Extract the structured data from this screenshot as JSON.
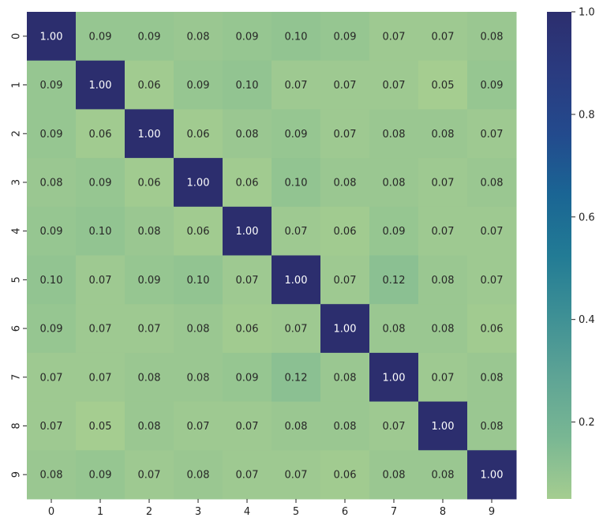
{
  "chart_data": {
    "type": "heatmap",
    "title": "",
    "xlabel": "",
    "ylabel": "",
    "x_categories": [
      "0",
      "1",
      "2",
      "3",
      "4",
      "5",
      "6",
      "7",
      "8",
      "9"
    ],
    "y_categories": [
      "0",
      "1",
      "2",
      "3",
      "4",
      "5",
      "6",
      "7",
      "8",
      "9"
    ],
    "values": [
      [
        1.0,
        0.09,
        0.09,
        0.08,
        0.09,
        0.1,
        0.09,
        0.07,
        0.07,
        0.08
      ],
      [
        0.09,
        1.0,
        0.06,
        0.09,
        0.1,
        0.07,
        0.07,
        0.07,
        0.05,
        0.09
      ],
      [
        0.09,
        0.06,
        1.0,
        0.06,
        0.08,
        0.09,
        0.07,
        0.08,
        0.08,
        0.07
      ],
      [
        0.08,
        0.09,
        0.06,
        1.0,
        0.06,
        0.1,
        0.08,
        0.08,
        0.07,
        0.08
      ],
      [
        0.09,
        0.1,
        0.08,
        0.06,
        1.0,
        0.07,
        0.06,
        0.09,
        0.07,
        0.07
      ],
      [
        0.1,
        0.07,
        0.09,
        0.1,
        0.07,
        1.0,
        0.07,
        0.12,
        0.08,
        0.07
      ],
      [
        0.09,
        0.07,
        0.07,
        0.08,
        0.06,
        0.07,
        1.0,
        0.08,
        0.08,
        0.06
      ],
      [
        0.07,
        0.07,
        0.08,
        0.08,
        0.09,
        0.12,
        0.08,
        1.0,
        0.07,
        0.08
      ],
      [
        0.07,
        0.05,
        0.08,
        0.07,
        0.07,
        0.08,
        0.08,
        0.07,
        1.0,
        0.08
      ],
      [
        0.08,
        0.09,
        0.07,
        0.08,
        0.07,
        0.07,
        0.06,
        0.08,
        0.08,
        1.0
      ]
    ],
    "value_format": "0.00",
    "colorbar": {
      "range": [
        0.05,
        1.0
      ],
      "ticks": [
        0.2,
        0.4,
        0.6,
        0.8,
        1.0
      ],
      "tick_labels": [
        "0.2",
        "0.4",
        "0.6",
        "0.8",
        "1.0"
      ]
    },
    "colormap": "crest",
    "colormap_stops": [
      "#a5cd90",
      "#79b793",
      "#5ea495",
      "#3e9095",
      "#227b95",
      "#1a6594",
      "#234a8d",
      "#2a3b80",
      "#2c2e6e"
    ],
    "annotation_color_dark": "#262626",
    "annotation_color_light": "#ffffff",
    "grid": false
  }
}
